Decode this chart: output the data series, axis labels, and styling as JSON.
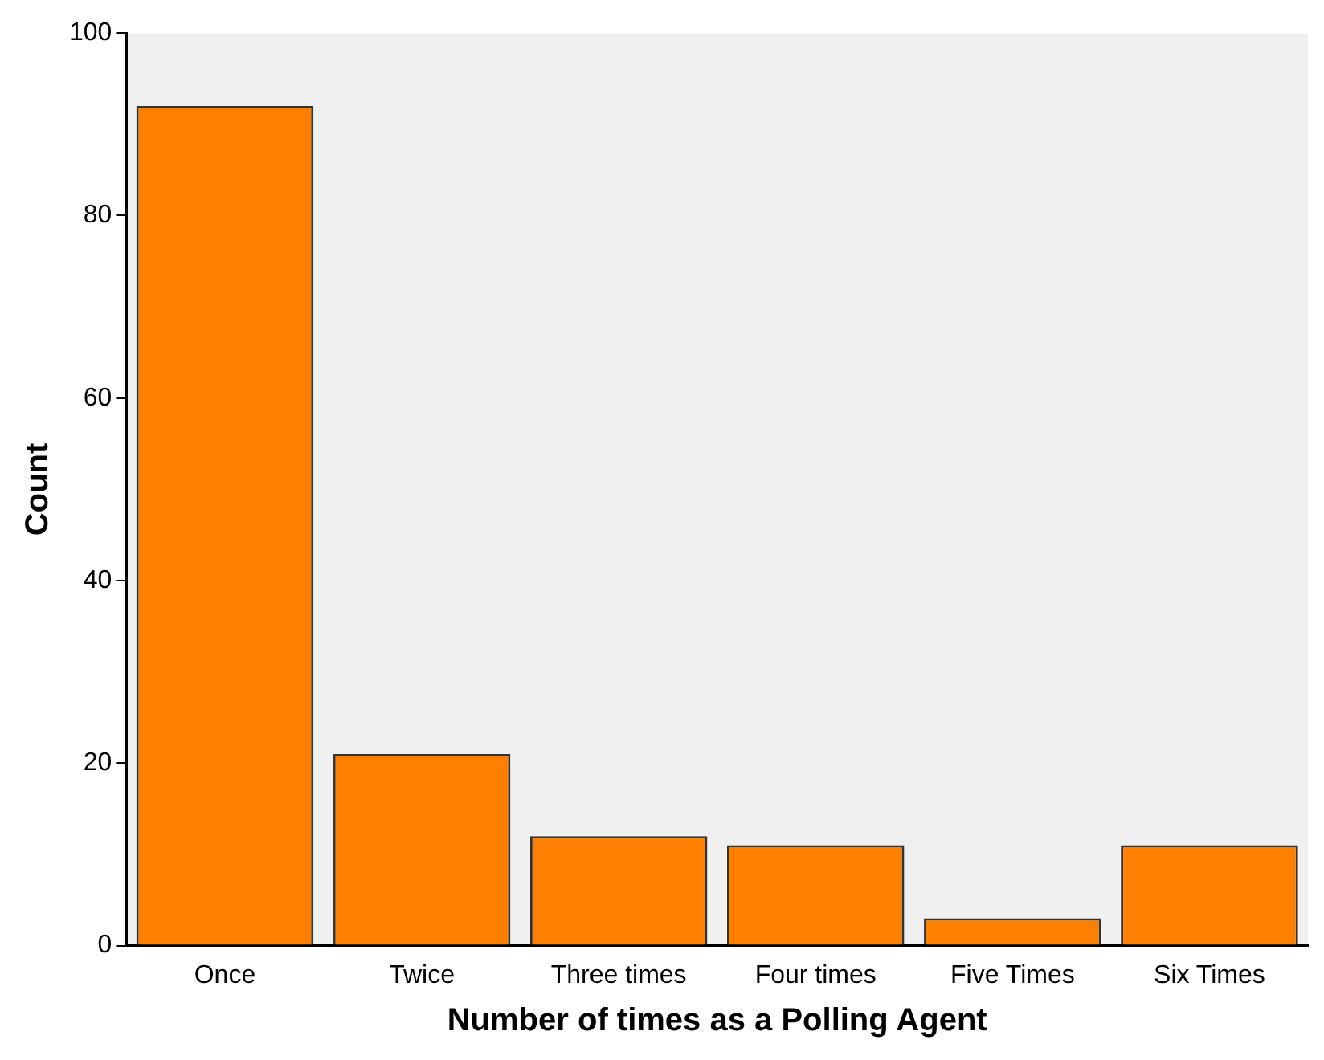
{
  "chart_data": {
    "type": "bar",
    "xlabel": "Number of times as a Polling Agent",
    "ylabel": "Count",
    "categories": [
      "Once",
      "Twice",
      "Three times",
      "Four times",
      "Five Times",
      "Six Times"
    ],
    "values": [
      92,
      21,
      12,
      11,
      3,
      11
    ],
    "color": "#ff8000",
    "ylim": [
      0,
      100
    ],
    "yticks": [
      0,
      20,
      40,
      60,
      80,
      100
    ],
    "grid": false,
    "legend": false
  }
}
